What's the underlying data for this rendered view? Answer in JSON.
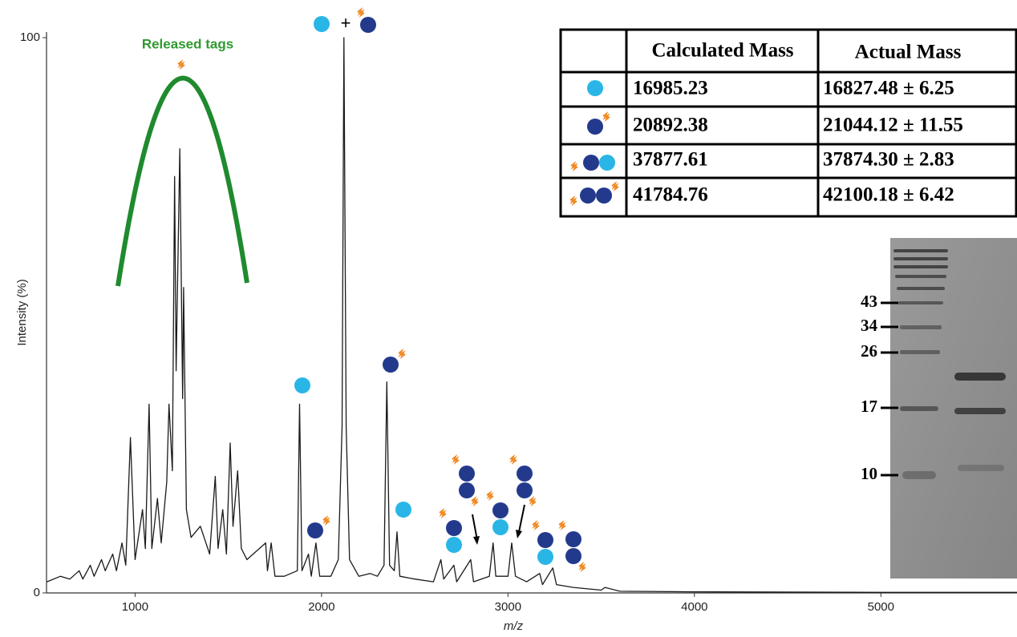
{
  "chart_data": {
    "type": "line",
    "y_label": "Intensity (%)",
    "x_label": "m/z",
    "annotations": [
      "Released tags",
      "+"
    ],
    "color": "#1a1a1a",
    "xlim": [
      525,
      5730
    ],
    "ylim": [
      0,
      100
    ],
    "xticks": [
      1000,
      2000,
      3000,
      4000,
      5000
    ],
    "yticks": [
      0,
      100
    ],
    "x": [
      527,
      600,
      650,
      700,
      720,
      760,
      780,
      820,
      840,
      880,
      900,
      930,
      950,
      975,
      1000,
      1040,
      1055,
      1075,
      1090,
      1120,
      1140,
      1170,
      1182,
      1200,
      1212,
      1220,
      1225,
      1240,
      1255,
      1260,
      1275,
      1300,
      1350,
      1400,
      1430,
      1445,
      1470,
      1490,
      1510,
      1525,
      1550,
      1570,
      1600,
      1700,
      1710,
      1730,
      1750,
      1800,
      1870,
      1882,
      1895,
      1930,
      1945,
      1970,
      1990,
      2050,
      2090,
      2110,
      2120,
      2132,
      2150,
      2200,
      2260,
      2300,
      2335,
      2350,
      2365,
      2390,
      2405,
      2420,
      2500,
      2600,
      2640,
      2655,
      2710,
      2725,
      2800,
      2815,
      2900,
      2920,
      2935,
      3000,
      3020,
      3040,
      3100,
      3170,
      3185,
      3240,
      3260,
      3350,
      3500,
      3520,
      3600,
      4000,
      5000,
      5730
    ],
    "values": [
      2,
      3,
      2.5,
      4,
      2.5,
      5,
      3,
      6,
      4,
      7,
      4,
      9,
      5,
      28,
      6,
      15,
      8,
      34,
      8,
      17,
      9,
      20,
      34,
      22,
      75,
      40,
      50,
      80,
      35,
      55,
      15,
      10,
      12,
      7,
      21,
      8,
      15,
      7,
      27,
      12,
      22,
      8,
      6,
      9,
      4,
      9,
      3,
      3,
      4,
      34,
      4,
      7,
      3,
      9,
      3,
      3,
      6,
      30,
      100,
      30,
      6,
      3,
      3.5,
      3,
      5,
      38,
      5,
      4,
      11,
      3,
      2.5,
      2,
      6,
      2.5,
      5,
      2,
      6,
      2,
      3,
      9,
      3,
      3,
      9,
      3,
      2,
      3.5,
      1.5,
      4.5,
      1.5,
      1,
      0.5,
      1,
      0.3,
      0.2,
      0.1,
      0.1
    ]
  },
  "table": {
    "header": [
      "Calculated Mass",
      "Actual Mass"
    ],
    "rows": [
      [
        "16985.23",
        "16827.48 ± 6.25"
      ],
      [
        "20892.38",
        "21044.12 ± 11.55"
      ],
      [
        "37877.61",
        "37874.30 ± 2.83"
      ],
      [
        "41784.76",
        "42100.18 ± 6.42"
      ]
    ]
  },
  "gel": {
    "marker_labels": [
      "43",
      "34",
      "26",
      "17",
      "10"
    ]
  }
}
